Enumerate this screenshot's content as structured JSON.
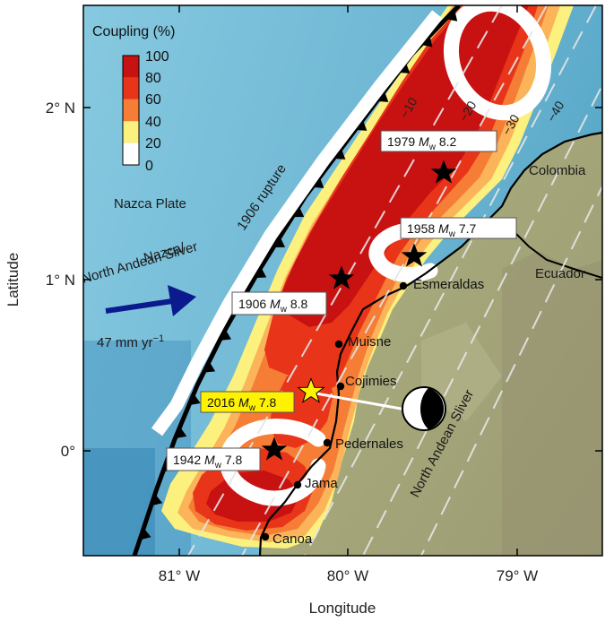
{
  "colorbar": {
    "title": "Coupling (%)",
    "ticks": [
      "100",
      "80",
      "60",
      "40",
      "20",
      "0"
    ],
    "colors": [
      "#c81212",
      "#e8351a",
      "#f57d35",
      "#fbb45a",
      "#fcf07e",
      "#ffffff"
    ]
  },
  "axes": {
    "xlabel": "Longitude",
    "ylabel": "Latitude",
    "x_ticks": [
      "81° W",
      "80° W",
      "79° W"
    ],
    "y_ticks": [
      "2° N",
      "1° N",
      "0°"
    ]
  },
  "labels": {
    "nazca_plate": "Nazca Plate",
    "motion_line1": "Nazca/",
    "motion_line2": "North Andean Sliver",
    "rate": "47 mm yr",
    "rate_exp": "−1",
    "rupture": "1906 rupture",
    "sliver": "North Andean Sliver",
    "colombia": "Colombia",
    "ecuador": "Ecuador"
  },
  "depth_contours": [
    "−10",
    "−20",
    "−30",
    "−40"
  ],
  "towns": [
    "Esmeraldas",
    "Muisne",
    "Cojimies",
    "Pedernales",
    "Jama",
    "Canoa"
  ],
  "earthquakes": [
    {
      "year": "1979",
      "m": "M",
      "sub": "w",
      "mag": "8.2"
    },
    {
      "year": "1958",
      "m": "M",
      "sub": "w",
      "mag": "7.7"
    },
    {
      "year": "1906",
      "m": "M",
      "sub": "w",
      "mag": "8.8"
    },
    {
      "year": "2016",
      "m": "M",
      "sub": "w",
      "mag": "7.8"
    },
    {
      "year": "1942",
      "m": "M",
      "sub": "w",
      "mag": "7.8"
    }
  ],
  "colors": {
    "ocean": "#7ec3dc",
    "land": "#a7a77a",
    "arrow": "#0b1a8c",
    "trench": "#000000",
    "highlight_box": "#fff200"
  }
}
